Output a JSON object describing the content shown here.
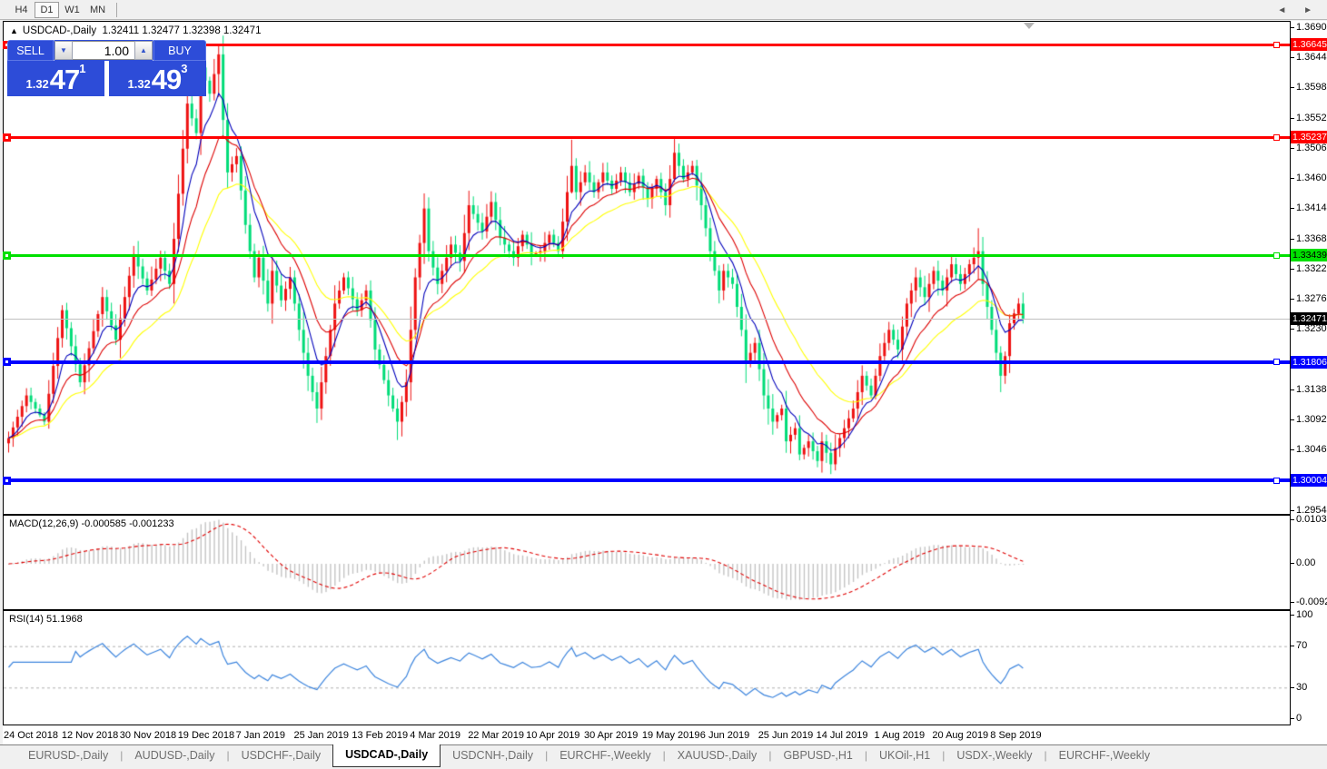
{
  "toolbar": {
    "timeframes": [
      {
        "label": "H4",
        "active": false
      },
      {
        "label": "D1",
        "active": true
      },
      {
        "label": "W1",
        "active": false
      },
      {
        "label": "MN",
        "active": false
      }
    ]
  },
  "chart": {
    "title_symbol": "USDCAD-,Daily",
    "ohlc": "1.32411 1.32477 1.32398 1.32471",
    "up_triangle": "▲"
  },
  "trade": {
    "sell_label": "SELL",
    "buy_label": "BUY",
    "volume": "1.00",
    "spin_down": "▼",
    "spin_up": "▲",
    "sell_price": {
      "prefix": "1.32",
      "big": "47",
      "sup": "1"
    },
    "buy_price": {
      "prefix": "1.32",
      "big": "49",
      "sup": "3"
    }
  },
  "price_axis": {
    "ticks": [
      "1.36900",
      "1.36440",
      "1.35980",
      "1.35520",
      "1.35060",
      "1.34600",
      "1.34140",
      "1.33680",
      "1.33220",
      "1.32760",
      "1.32300",
      "1.31380",
      "1.30920",
      "1.30460",
      "1.29540"
    ],
    "badges": [
      {
        "text": "1.36645",
        "value": 1.36645,
        "bg": "#ff0000",
        "fg": "#ffffff"
      },
      {
        "text": "1.35237",
        "value": 1.35237,
        "bg": "#ff0000",
        "fg": "#ffffff"
      },
      {
        "text": "1.33439",
        "value": 1.33439,
        "bg": "#00e000",
        "fg": "#000000"
      },
      {
        "text": "1.32471",
        "value": 1.32471,
        "bg": "#000000",
        "fg": "#ffffff"
      },
      {
        "text": "1.31806",
        "value": 1.31806,
        "bg": "#0000ff",
        "fg": "#ffffff"
      },
      {
        "text": "1.30004",
        "value": 1.30004,
        "bg": "#0000ff",
        "fg": "#ffffff"
      }
    ]
  },
  "panes": {
    "macd": {
      "label": "MACD(12,26,9) -0.000585 -0.001233",
      "axis": [
        {
          "text": "0.010311",
          "value": 0.010311
        },
        {
          "text": "0.00",
          "value": 0
        },
        {
          "text": "-0.009203",
          "value": -0.009203
        }
      ]
    },
    "rsi": {
      "label": "RSI(14) 51.1968",
      "axis": [
        {
          "text": "100",
          "value": 100
        },
        {
          "text": "70",
          "value": 70
        },
        {
          "text": "30",
          "value": 30
        },
        {
          "text": "0",
          "value": 0
        }
      ],
      "dashed_levels": [
        70,
        30
      ]
    }
  },
  "date_axis": [
    "24 Oct 2018",
    "12 Nov 2018",
    "30 Nov 2018",
    "19 Dec 2018",
    "7 Jan 2019",
    "25 Jan 2019",
    "13 Feb 2019",
    "4 Mar 2019",
    "22 Mar 2019",
    "10 Apr 2019",
    "30 Apr 2019",
    "19 May 2019",
    "6 Jun 2019",
    "25 Jun 2019",
    "14 Jul 2019",
    "1 Aug 2019",
    "20 Aug 2019",
    "8 Sep 2019"
  ],
  "tabs": [
    {
      "label": "EURUSD-,Daily",
      "active": false
    },
    {
      "label": "AUDUSD-,Daily",
      "active": false
    },
    {
      "label": "USDCHF-,Daily",
      "active": false
    },
    {
      "label": "USDCAD-,Daily",
      "active": true
    },
    {
      "label": "USDCNH-,Daily",
      "active": false
    },
    {
      "label": "EURCHF-,Weekly",
      "active": false
    },
    {
      "label": "XAUUSD-,Daily",
      "active": false
    },
    {
      "label": "GBPUSD-,H1",
      "active": false
    },
    {
      "label": "UKOil-,H1",
      "active": false
    },
    {
      "label": "USDX-,Weekly",
      "active": false
    },
    {
      "label": "EURCHF-,Weekly",
      "active": false
    }
  ],
  "tab_arrows": "◄ ►",
  "chart_data": {
    "type": "candlestick",
    "symbol": "USDCAD",
    "timeframe": "Daily",
    "price_range_visible": [
      1.2952,
      1.3705
    ],
    "candle_count": 228,
    "up_color": "#ee1111",
    "down_color": "#00dc78",
    "close_anchors": [
      [
        0,
        1.3065
      ],
      [
        4,
        1.313
      ],
      [
        8,
        1.309
      ],
      [
        12,
        1.326
      ],
      [
        16,
        1.315
      ],
      [
        21,
        1.328
      ],
      [
        24,
        1.3215
      ],
      [
        28,
        1.3345
      ],
      [
        31,
        1.329
      ],
      [
        34,
        1.334
      ],
      [
        36,
        1.33
      ],
      [
        40,
        1.3575
      ],
      [
        42,
        1.353
      ],
      [
        43,
        1.363
      ],
      [
        45,
        1.359
      ],
      [
        47,
        1.365
      ],
      [
        48,
        1.355
      ],
      [
        49,
        1.347
      ],
      [
        51,
        1.3495
      ],
      [
        53,
        1.339
      ],
      [
        55,
        1.331
      ],
      [
        56,
        1.334
      ],
      [
        58,
        1.327
      ],
      [
        59,
        1.332
      ],
      [
        61,
        1.3275
      ],
      [
        63,
        1.331
      ],
      [
        65,
        1.323
      ],
      [
        67,
        1.316
      ],
      [
        69,
        1.311
      ],
      [
        71,
        1.319
      ],
      [
        73,
        1.327
      ],
      [
        75,
        1.331
      ],
      [
        78,
        1.326
      ],
      [
        80,
        1.329
      ],
      [
        82,
        1.32
      ],
      [
        85,
        1.313
      ],
      [
        87,
        1.309
      ],
      [
        89,
        1.315
      ],
      [
        91,
        1.331
      ],
      [
        93,
        1.3415
      ],
      [
        94,
        1.335
      ],
      [
        96,
        1.33
      ],
      [
        99,
        1.336
      ],
      [
        101,
        1.3335
      ],
      [
        103,
        1.342
      ],
      [
        106,
        1.338
      ],
      [
        108,
        1.3425
      ],
      [
        110,
        1.337
      ],
      [
        113,
        1.334
      ],
      [
        115,
        1.3375
      ],
      [
        117,
        1.3345
      ],
      [
        119,
        1.335
      ],
      [
        121,
        1.3375
      ],
      [
        123,
        1.335
      ],
      [
        125,
        1.344
      ],
      [
        126,
        1.348
      ],
      [
        127,
        1.344
      ],
      [
        129,
        1.347
      ],
      [
        131,
        1.344
      ],
      [
        133,
        1.347
      ],
      [
        135,
        1.3445
      ],
      [
        137,
        1.347
      ],
      [
        139,
        1.344
      ],
      [
        141,
        1.3465
      ],
      [
        143,
        1.343
      ],
      [
        145,
        1.346
      ],
      [
        147,
        1.342
      ],
      [
        149,
        1.35
      ],
      [
        151,
        1.346
      ],
      [
        153,
        1.348
      ],
      [
        155,
        1.342
      ],
      [
        157,
        1.335
      ],
      [
        159,
        1.329
      ],
      [
        160,
        1.332
      ],
      [
        162,
        1.33
      ],
      [
        164,
        1.323
      ],
      [
        165,
        1.318
      ],
      [
        167,
        1.321
      ],
      [
        169,
        1.313
      ],
      [
        171,
        1.309
      ],
      [
        173,
        1.311
      ],
      [
        174,
        1.306
      ],
      [
        176,
        1.308
      ],
      [
        177,
        1.304
      ],
      [
        179,
        1.306
      ],
      [
        181,
        1.303
      ],
      [
        182,
        1.306
      ],
      [
        184,
        1.3025
      ],
      [
        185,
        1.305
      ],
      [
        187,
        1.308
      ],
      [
        189,
        1.311
      ],
      [
        191,
        1.316
      ],
      [
        193,
        1.313
      ],
      [
        195,
        1.319
      ],
      [
        197,
        1.323
      ],
      [
        199,
        1.32
      ],
      [
        201,
        1.327
      ],
      [
        203,
        1.331
      ],
      [
        205,
        1.328
      ],
      [
        207,
        1.332
      ],
      [
        209,
        1.329
      ],
      [
        211,
        1.333
      ],
      [
        213,
        1.33
      ],
      [
        215,
        1.333
      ],
      [
        217,
        1.335
      ],
      [
        218,
        1.33
      ],
      [
        220,
        1.323
      ],
      [
        222,
        1.316
      ],
      [
        223,
        1.319
      ],
      [
        224,
        1.324
      ],
      [
        226,
        1.327
      ],
      [
        227,
        1.32471
      ]
    ],
    "wick_overrides": [
      [
        47,
        1.36645,
        1.3585
      ],
      [
        69,
        1.315,
        1.3088
      ],
      [
        87,
        1.3125,
        1.3062
      ],
      [
        126,
        1.352,
        1.3438
      ],
      [
        149,
        1.35237,
        1.3455
      ],
      [
        184,
        1.3058,
        1.301
      ],
      [
        217,
        1.3385,
        1.3308
      ],
      [
        222,
        1.3205,
        1.3135
      ]
    ],
    "moving_averages": [
      {
        "name": "ma-fast",
        "period": 7,
        "color": "#0000bb"
      },
      {
        "name": "ma-mid",
        "period": 14,
        "color": "#dd0000"
      },
      {
        "name": "ma-slow",
        "period": 26,
        "color": "#ffff00"
      }
    ],
    "macd": {
      "fast": 12,
      "slow": 26,
      "signal": 9,
      "last_value": -0.000585,
      "last_signal": -0.001233,
      "bar_color": "#c4c4c4",
      "signal_color": "#e00000"
    },
    "rsi": {
      "period": 14,
      "last_value": 51.1968,
      "color": "#3d85dd"
    },
    "levels": [
      {
        "price": 1.36645,
        "color": "#ff0000",
        "thickness": 3
      },
      {
        "price": 1.35237,
        "color": "#ff0000",
        "thickness": 3
      },
      {
        "price": 1.33439,
        "color": "#00e000",
        "thickness": 3
      },
      {
        "price": 1.31806,
        "color": "#0000ff",
        "thickness": 4
      },
      {
        "price": 1.30004,
        "color": "#0000ff",
        "thickness": 4
      }
    ],
    "current_price": 1.32471
  }
}
